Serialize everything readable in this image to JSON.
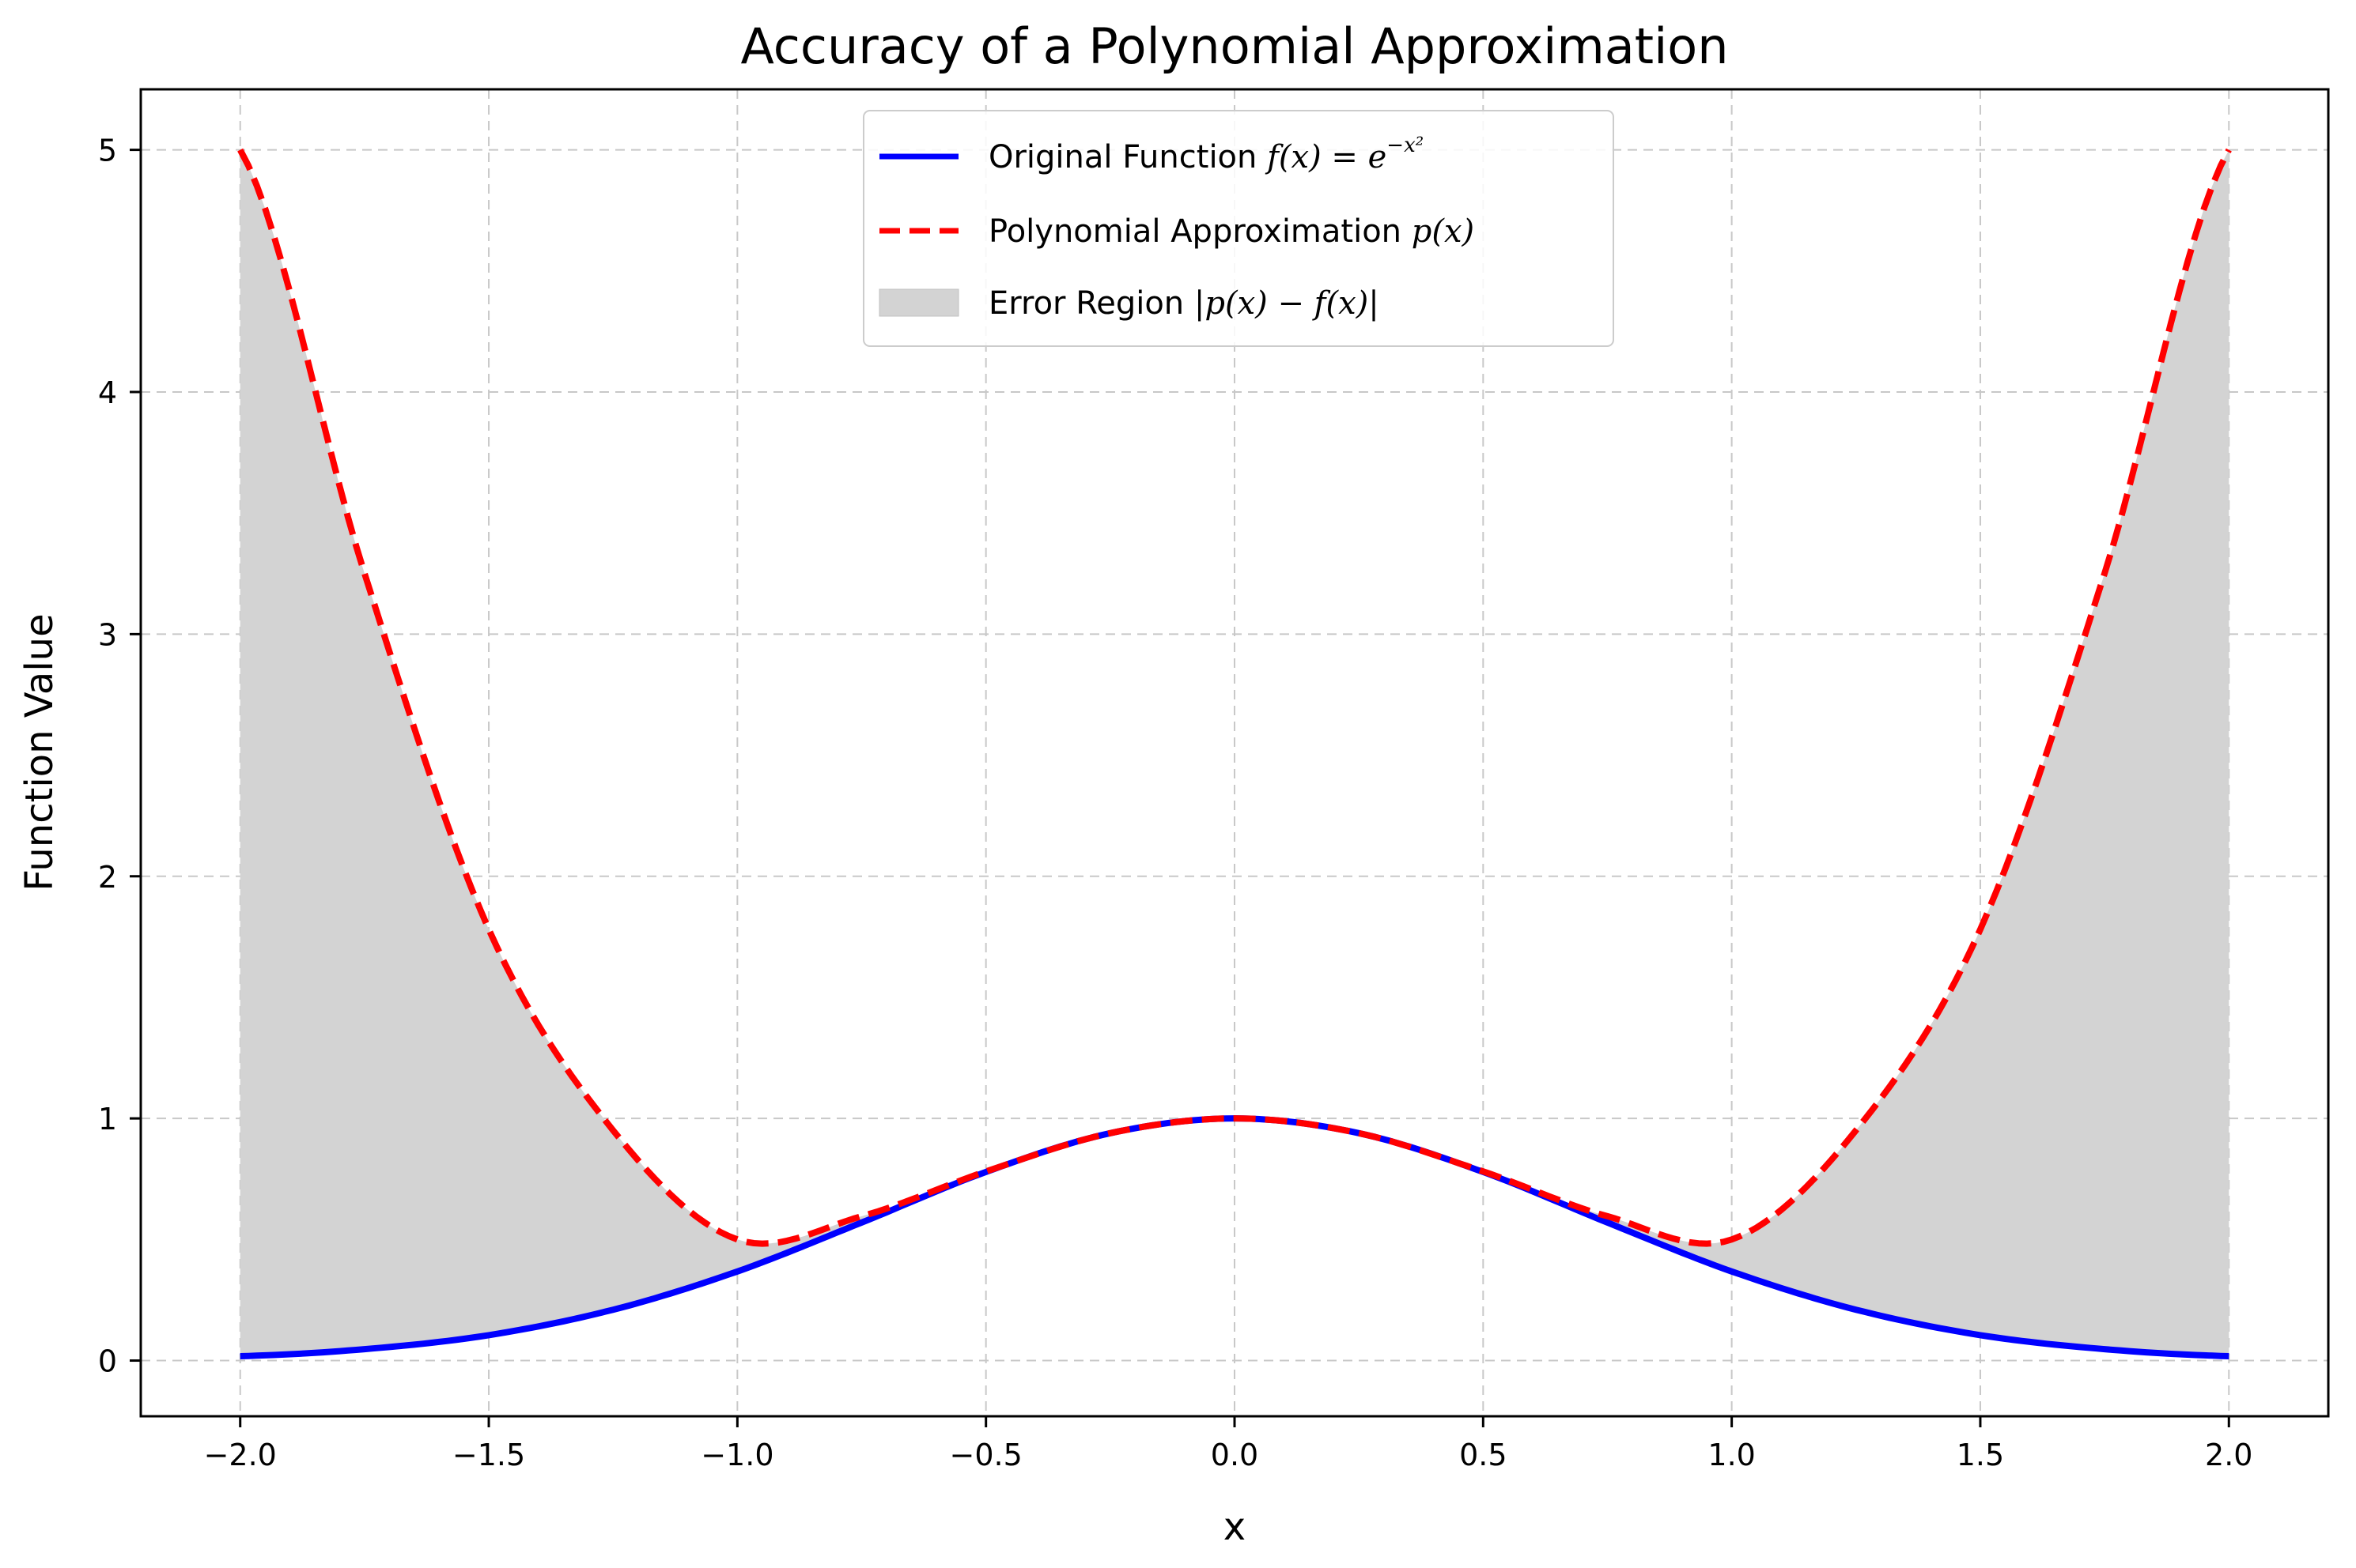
{
  "chart_data": {
    "type": "line",
    "title": "Accuracy of a Polynomial Approximation",
    "xlabel": "x",
    "ylabel": "Function Value",
    "xlim": [
      -2.2,
      2.2
    ],
    "ylim": [
      -0.23,
      5.25
    ],
    "grid": true,
    "legend_position": "top-center",
    "x_ticks": [
      -2.0,
      -1.5,
      -1.0,
      -0.5,
      0.0,
      0.5,
      1.0,
      1.5,
      2.0
    ],
    "x_tick_labels": [
      "−2.0",
      "−1.5",
      "−1.0",
      "−0.5",
      "0.0",
      "0.5",
      "1.0",
      "1.5",
      "2.0"
    ],
    "y_ticks": [
      0,
      1,
      2,
      3,
      4,
      5
    ],
    "y_tick_labels": [
      "0",
      "1",
      "2",
      "3",
      "4",
      "5"
    ],
    "x": [
      -2.0,
      -1.75,
      -1.5,
      -1.25,
      -1.0,
      -0.75,
      -0.5,
      -0.25,
      0.0,
      0.25,
      0.5,
      0.75,
      1.0,
      1.25,
      1.5,
      1.75,
      2.0
    ],
    "series": [
      {
        "name": "Original Function",
        "legend_text": "Original Function ",
        "legend_math": "f(x) = e",
        "legend_math_sup": "−x²",
        "style": "solid",
        "color": "#0000ff",
        "values": [
          0.018,
          0.047,
          0.105,
          0.21,
          0.368,
          0.57,
          0.779,
          0.939,
          1.0,
          0.939,
          0.779,
          0.57,
          0.368,
          0.21,
          0.105,
          0.047,
          0.018
        ]
      },
      {
        "name": "Polynomial Approximation",
        "legend_text": "Polynomial Approximation ",
        "legend_math": "p(x)",
        "style": "dashed",
        "color": "#ff0000",
        "values": [
          5.0,
          3.251,
          1.781,
          0.951,
          0.5,
          0.596,
          0.781,
          0.939,
          1.0,
          0.939,
          0.781,
          0.596,
          0.5,
          0.951,
          1.781,
          3.251,
          5.0
        ]
      }
    ],
    "fill": {
      "name": "Error Region",
      "legend_text": "Error Region ",
      "legend_math": "|p(x) − f(x)|",
      "color": "#d3d3d3",
      "between": [
        "Original Function",
        "Polynomial Approximation"
      ]
    }
  }
}
